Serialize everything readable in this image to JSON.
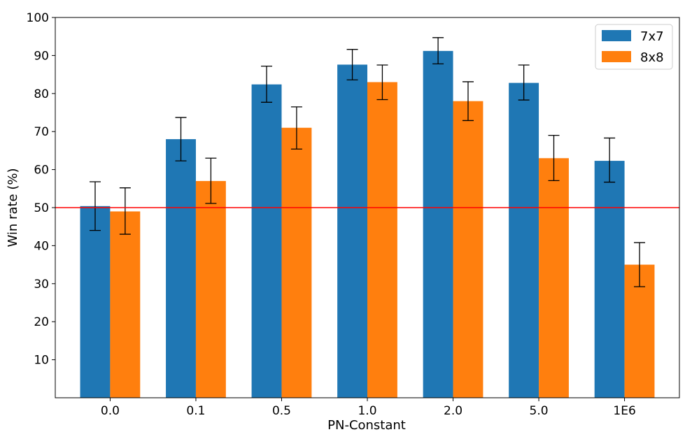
{
  "chart_data": {
    "type": "bar",
    "title": "",
    "xlabel": "PN-Constant",
    "ylabel": "Win rate (%)",
    "categories": [
      "0.0",
      "0.1",
      "0.5",
      "1.0",
      "2.0",
      "5.0",
      "1E6"
    ],
    "ylim": [
      0,
      100
    ],
    "yticks": [
      10,
      20,
      30,
      40,
      50,
      60,
      70,
      80,
      90,
      100
    ],
    "series": [
      {
        "name": "7x7",
        "color": "#1f77b4",
        "values": [
          50.4,
          68.0,
          82.4,
          87.6,
          91.2,
          82.8,
          62.3
        ],
        "err_low": [
          44.0,
          62.3,
          77.7,
          83.6,
          87.8,
          78.3,
          56.7
        ],
        "err_high": [
          56.8,
          73.7,
          87.2,
          91.6,
          94.7,
          87.5,
          68.3
        ]
      },
      {
        "name": "8x8",
        "color": "#ff7f0e",
        "values": [
          49.0,
          57.0,
          71.0,
          83.0,
          78.0,
          63.0,
          35.0
        ],
        "err_low": [
          43.0,
          51.1,
          65.4,
          78.4,
          72.9,
          57.1,
          29.2
        ],
        "err_high": [
          55.2,
          63.0,
          76.5,
          87.5,
          83.1,
          69.0,
          40.8
        ]
      }
    ],
    "reference_line": {
      "y": 50,
      "color": "#ff0000"
    },
    "legend_position": "top-right"
  }
}
